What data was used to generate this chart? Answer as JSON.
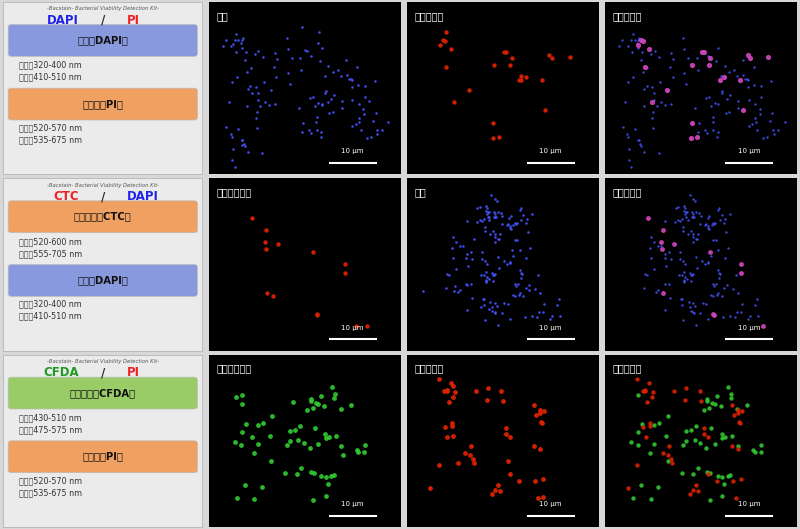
{
  "title_row1": "-Bacstain- Bacterial Viability Detection Kit-",
  "kit1_name_part1": "DAPI",
  "kit1_name_part2": "PI",
  "kit1_name_color1": "#2222ee",
  "kit1_name_color2": "#ee2222",
  "kit1_box1_label": "全菌（DAPI）",
  "kit1_box1_color": "#8899dd",
  "kit1_box1_lines": [
    "励起：320-400 nm",
    "蛍光：410-510 nm"
  ],
  "kit1_box2_label": "膜損傷（PI）",
  "kit1_box2_color": "#f0a060",
  "kit1_box2_lines": [
    "励起：520-570 nm",
    "蛍光：535-675 nm"
  ],
  "kit2_name_part1": "CTC",
  "kit2_name_part2": "DAPI",
  "kit2_name_color1": "#ee2222",
  "kit2_name_color2": "#2222ee",
  "kit2_box1_label": "呼吸活性（CTC）",
  "kit2_box1_color": "#f0a060",
  "kit2_box1_lines": [
    "励起：520-600 nm",
    "蛍光：555-705 nm"
  ],
  "kit2_box2_label": "全菌（DAPI）",
  "kit2_box2_color": "#8899dd",
  "kit2_box2_lines": [
    "励起：320-400 nm",
    "蛍光：410-510 nm"
  ],
  "kit3_name_part1": "CFDA",
  "kit3_name_part2": "PI",
  "kit3_name_color1": "#229922",
  "kit3_name_color2": "#ee2222",
  "kit3_box1_label": "酵素活性（CFDA）",
  "kit3_box1_color": "#99cc66",
  "kit3_box1_lines": [
    "励起：430-510 nm",
    "蛍光：475-575 nm"
  ],
  "kit3_box2_label": "膜損傷（PI）",
  "kit3_box2_color": "#f0a060",
  "kit3_box2_lines": [
    "励起：520-570 nm",
    "蛍光：535-675 nm"
  ],
  "row1_titles": [
    "全菌",
    "膜損傷あり",
    "重ね合わせ"
  ],
  "row2_titles": [
    "呼吸活性あり",
    "全菌",
    "重ね合わせ"
  ],
  "row3_titles": [
    "酵素活性あり",
    "膜損傷あり",
    "重ね合わせ"
  ],
  "scale_bar_label": "10 μm",
  "outer_bg": "#d8d8d8",
  "panel_bg": "#ebebeb"
}
